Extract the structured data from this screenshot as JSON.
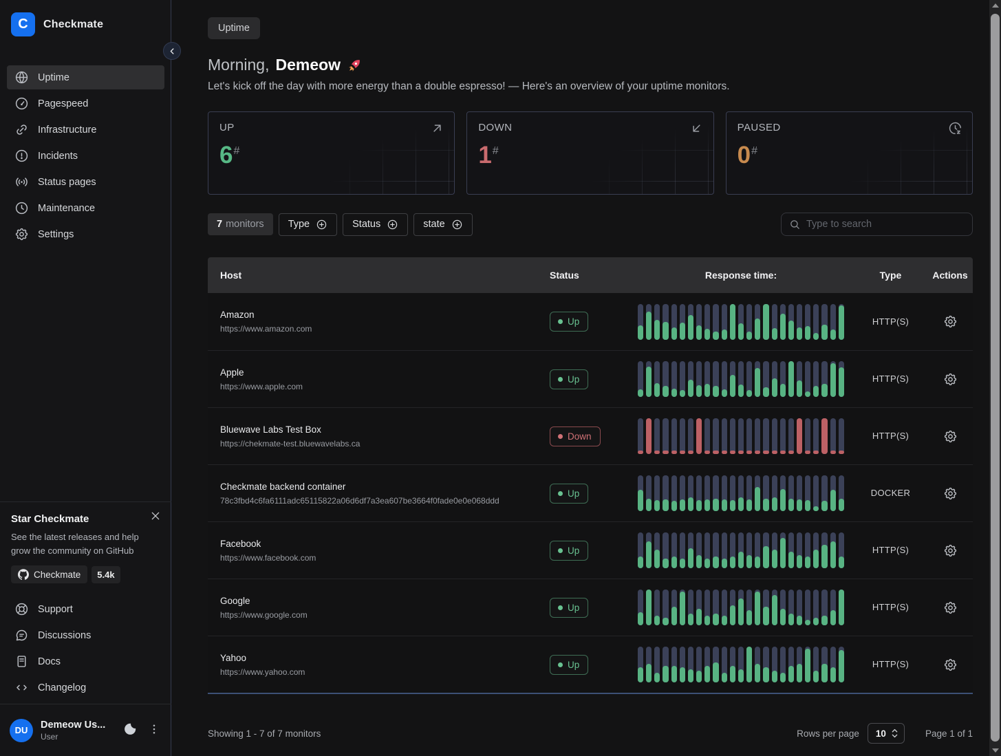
{
  "brand": {
    "name": "Checkmate",
    "logo_letter": "C",
    "logo_color": "#1570ef"
  },
  "sidebar": {
    "nav": [
      {
        "label": "Uptime",
        "icon": "globe",
        "active": true
      },
      {
        "label": "Pagespeed",
        "icon": "gauge",
        "active": false
      },
      {
        "label": "Infrastructure",
        "icon": "link",
        "active": false
      },
      {
        "label": "Incidents",
        "icon": "alert-circle",
        "active": false
      },
      {
        "label": "Status pages",
        "icon": "broadcast",
        "active": false
      },
      {
        "label": "Maintenance",
        "icon": "clock",
        "active": false
      },
      {
        "label": "Settings",
        "icon": "gear",
        "active": false
      }
    ],
    "promo": {
      "title": "Star Checkmate",
      "body": "See the latest releases and help grow the community on GitHub",
      "repo_button": "Checkmate",
      "stars": "5.4k"
    },
    "footer_nav": [
      {
        "label": "Support",
        "icon": "lifebuoy"
      },
      {
        "label": "Discussions",
        "icon": "message",
        "active": false
      },
      {
        "label": "Docs",
        "icon": "file-text",
        "active": false
      },
      {
        "label": "Changelog",
        "icon": "code",
        "active": false
      }
    ],
    "user": {
      "name": "Demeow Us...",
      "role": "User",
      "initials": "DU"
    }
  },
  "header": {
    "breadcrumb": "Uptime",
    "greeting_prefix": "Morning,",
    "greeting_name": "Demeow",
    "greeting_icon": "rocket",
    "subtitle": "Let's kick off the day with more energy than a double espresso! — Here's an overview of your uptime monitors."
  },
  "stats": [
    {
      "label": "UP",
      "value": "6",
      "suffix": "#",
      "color": "#57b885",
      "icon": "arrow-up-right"
    },
    {
      "label": "DOWN",
      "value": "1",
      "suffix": "#",
      "color": "#c96b6e",
      "icon": "arrow-down-left"
    },
    {
      "label": "PAUSED",
      "value": "0",
      "suffix": "#",
      "color": "#c78a4e",
      "icon": "clock-snooze"
    }
  ],
  "filters": {
    "count": "7",
    "count_label": "monitors",
    "buttons": [
      "Type",
      "Status",
      "state"
    ],
    "search_placeholder": "Type to search"
  },
  "table": {
    "columns": [
      "Host",
      "Status",
      "Response time:",
      "Type",
      "Actions"
    ],
    "rows": [
      {
        "name": "Amazon",
        "url": "https://www.amazon.com",
        "status": "Up",
        "type": "HTTP(S)",
        "bars": [
          0.4,
          0.78,
          0.55,
          0.5,
          0.34,
          0.48,
          0.68,
          0.4,
          0.3,
          0.22,
          0.28,
          1,
          0.45,
          0.22,
          0.58,
          1,
          0.32,
          0.72,
          0.52,
          0.34,
          0.38,
          0.18,
          0.42,
          0.28,
          0.95
        ]
      },
      {
        "name": "Apple",
        "url": "https://www.apple.com",
        "status": "Up",
        "type": "HTTP(S)",
        "bars": [
          0.22,
          0.85,
          0.38,
          0.3,
          0.24,
          0.2,
          0.48,
          0.32,
          0.36,
          0.3,
          0.22,
          0.62,
          0.35,
          0.2,
          0.8,
          0.26,
          0.52,
          0.36,
          1,
          0.46,
          0.16,
          0.3,
          0.36,
          0.95,
          0.82
        ]
      },
      {
        "name": "Bluewave Labs Test Box",
        "url": "https://chekmate-test.bluewavelabs.ca",
        "status": "Down",
        "type": "HTTP(S)",
        "bars": [
          0.1,
          1,
          0.1,
          0.1,
          0.1,
          0.1,
          0.1,
          1,
          0.1,
          0.1,
          0.1,
          0.1,
          0.1,
          0.1,
          0.1,
          0.1,
          0.1,
          0.1,
          0.1,
          1,
          0.1,
          0.1,
          1,
          0.1,
          0.1
        ]
      },
      {
        "name": "Checkmate backend container",
        "url": "78c3fbd4c6fa6111adc65115822a06d6df7a3ea607be3664f0fade0e0e068ddd",
        "status": "Up",
        "type": "DOCKER",
        "bars": [
          0.6,
          0.34,
          0.3,
          0.32,
          0.28,
          0.32,
          0.38,
          0.3,
          0.32,
          0.34,
          0.32,
          0.3,
          0.38,
          0.32,
          0.68,
          0.34,
          0.38,
          0.62,
          0.34,
          0.32,
          0.3,
          0.14,
          0.28,
          0.6,
          0.34
        ]
      },
      {
        "name": "Facebook",
        "url": "https://www.facebook.com",
        "status": "Up",
        "type": "HTTP(S)",
        "bars": [
          0.32,
          0.75,
          0.52,
          0.26,
          0.32,
          0.26,
          0.56,
          0.36,
          0.26,
          0.32,
          0.26,
          0.32,
          0.46,
          0.36,
          0.32,
          0.62,
          0.52,
          0.85,
          0.46,
          0.36,
          0.32,
          0.52,
          0.66,
          0.75,
          0.32
        ]
      },
      {
        "name": "Google",
        "url": "https://www.google.com",
        "status": "Up",
        "type": "HTTP(S)",
        "bars": [
          0.36,
          1,
          0.26,
          0.22,
          0.52,
          0.95,
          0.32,
          0.46,
          0.26,
          0.32,
          0.26,
          0.56,
          0.75,
          0.42,
          0.95,
          0.52,
          0.85,
          0.46,
          0.32,
          0.26,
          0.16,
          0.22,
          0.26,
          0.42,
          1
        ]
      },
      {
        "name": "Yahoo",
        "url": "https://www.yahoo.com",
        "status": "Up",
        "type": "HTTP(S)",
        "bars": [
          0.42,
          0.52,
          0.26,
          0.46,
          0.46,
          0.42,
          0.36,
          0.32,
          0.46,
          0.56,
          0.26,
          0.46,
          0.36,
          1,
          0.52,
          0.42,
          0.32,
          0.26,
          0.46,
          0.52,
          0.95,
          0.32,
          0.52,
          0.42,
          0.9
        ]
      }
    ]
  },
  "pagination": {
    "showing": "Showing 1 - 7 of 7 monitors",
    "rows_per_page_label": "Rows per page",
    "rows_per_page_value": "10",
    "page_label": "Page 1 of 1"
  },
  "colors": {
    "accent_blue": "#1570ef",
    "up_green": "#57b885",
    "down_red": "#c96b6e",
    "paused_orange": "#c78a4e",
    "bar_track": "#3b4158",
    "bar_up_fill": "#58b383",
    "bar_down_fill": "#bd6165"
  }
}
